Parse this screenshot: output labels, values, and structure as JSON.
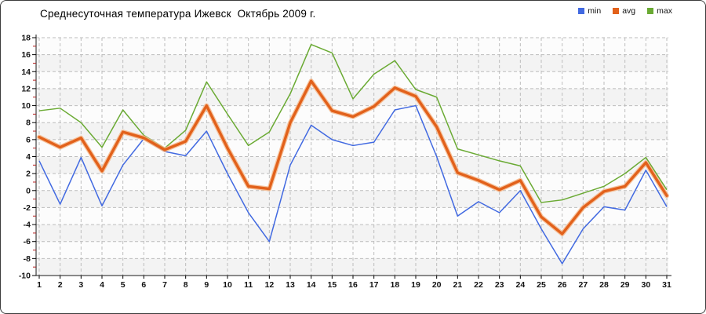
{
  "title": "Среднесуточная температура Ижевск  Октябрь 2009 г.",
  "chart_data": {
    "type": "line",
    "title": "Среднесуточная температура Ижевск  Октябрь 2009 г.",
    "xlabel": "",
    "ylabel": "",
    "x": [
      1,
      2,
      3,
      4,
      5,
      6,
      7,
      8,
      9,
      10,
      11,
      12,
      13,
      14,
      15,
      16,
      17,
      18,
      19,
      20,
      21,
      22,
      23,
      24,
      25,
      26,
      27,
      28,
      29,
      30,
      31
    ],
    "ylim": [
      -10,
      18
    ],
    "ytick_step": 2,
    "grid": true,
    "legend_position": "top-right",
    "series": [
      {
        "name": "min",
        "color": "#4169e1",
        "values": [
          3.5,
          -1.6,
          3.9,
          -1.8,
          3.0,
          6.1,
          4.6,
          4.1,
          7.0,
          2.0,
          -2.6,
          -6.0,
          3.0,
          7.7,
          6.0,
          5.3,
          5.7,
          9.5,
          10.0,
          4.0,
          -3.0,
          -1.3,
          -2.6,
          0.0,
          -4.5,
          -8.6,
          -4.5,
          -1.9,
          -2.3,
          2.4,
          -1.9
        ]
      },
      {
        "name": "avg",
        "color": "#e2611b",
        "halo_color": "#f5b98c",
        "values": [
          6.3,
          5.1,
          6.2,
          2.3,
          6.9,
          6.2,
          4.8,
          5.8,
          10.0,
          5.0,
          0.5,
          0.2,
          8.0,
          12.9,
          9.4,
          8.7,
          9.9,
          12.1,
          11.1,
          7.5,
          2.1,
          1.2,
          0.1,
          1.2,
          -3.1,
          -5.1,
          -2.0,
          -0.1,
          0.5,
          3.3,
          -0.6
        ]
      },
      {
        "name": "max",
        "color": "#6aaa33",
        "values": [
          9.4,
          9.7,
          8.0,
          5.1,
          9.5,
          6.5,
          5.0,
          7.1,
          12.8,
          9.0,
          5.3,
          6.9,
          11.4,
          17.2,
          16.2,
          10.8,
          13.7,
          15.3,
          11.9,
          11.0,
          4.9,
          4.2,
          3.5,
          2.9,
          -1.4,
          -1.1,
          -0.3,
          0.5,
          2.0,
          3.9,
          0.1
        ]
      }
    ],
    "yticks": [
      18,
      16,
      14,
      12,
      10,
      8,
      6,
      4,
      2,
      0,
      -2,
      -4,
      -6,
      -8,
      -10
    ],
    "axis_colors": {
      "major_tick": "#000000",
      "minor_tick": "#b32020",
      "gridline": "#bdbdbd",
      "band_light": "#fcfcfc",
      "band_dark": "#f3f3f3"
    }
  }
}
